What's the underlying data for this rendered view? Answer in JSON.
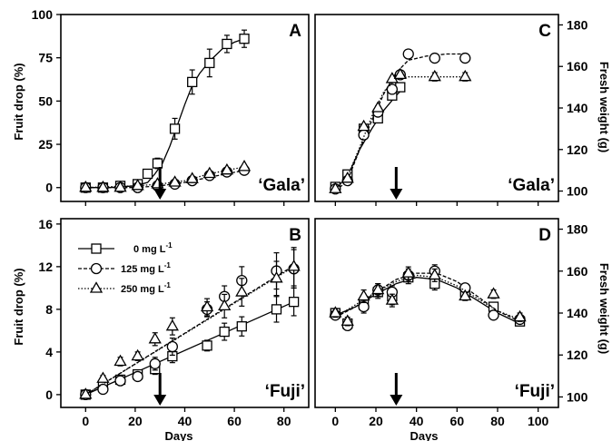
{
  "figure": {
    "xlabel": "Days",
    "ylabel_left_top": "Fruit drop (%)",
    "ylabel_left_bottom": "Fruit drop (%)",
    "ylabel_right_top": "Fresh weight (g)",
    "ylabel_right_bottom": "Fresh weight (g)",
    "legend": [
      {
        "label": "0 mg L",
        "superscript": "-1",
        "marker": "square",
        "dash": "solid"
      },
      {
        "label": "125 mg L",
        "superscript": "-1",
        "marker": "circle",
        "dash": "dashed"
      },
      {
        "label": "250 mg L",
        "superscript": "-1",
        "marker": "triangle",
        "dash": "dotted"
      }
    ]
  },
  "chart_data": [
    {
      "panel": "A",
      "cultivar": "‘Gala’",
      "type": "scatter",
      "xlabel": "",
      "ylabel": "Fruit drop (%)",
      "xlim": [
        -10,
        90
      ],
      "ylim": [
        -8,
        100
      ],
      "xticks": [
        0,
        20,
        40,
        60,
        80
      ],
      "yticks": [
        0,
        25,
        50,
        75,
        100
      ],
      "x_tick_labels_shown": false,
      "arrow_at": 30,
      "series": [
        {
          "name": "0 mg L-1",
          "marker": "square",
          "dash": "solid",
          "x": [
            0,
            7,
            14,
            21,
            25,
            29,
            36,
            43,
            50,
            57,
            64
          ],
          "y": [
            0,
            0,
            1,
            2,
            8,
            14,
            34,
            61,
            72,
            83,
            86
          ],
          "err": [
            1,
            1,
            1,
            1,
            2,
            3,
            6,
            7,
            8,
            5,
            5
          ],
          "fit": [
            [
              0,
              0
            ],
            [
              10,
              0
            ],
            [
              20,
              1
            ],
            [
              25,
              3
            ],
            [
              28,
              8
            ],
            [
              31,
              14
            ],
            [
              34,
              24
            ],
            [
              37,
              36
            ],
            [
              40,
              48
            ],
            [
              43,
              59
            ],
            [
              46,
              66
            ],
            [
              50,
              73
            ],
            [
              55,
              80
            ],
            [
              60,
              84
            ],
            [
              64,
              86
            ]
          ]
        },
        {
          "name": "125 mg L-1",
          "marker": "circle",
          "dash": "dashed",
          "x": [
            0,
            7,
            14,
            21,
            29,
            36,
            43,
            50,
            57,
            64
          ],
          "y": [
            0,
            0,
            0,
            0,
            1,
            2,
            4,
            7,
            9,
            10
          ],
          "err": [
            1,
            1,
            1,
            1,
            1,
            1,
            1,
            1,
            1,
            1
          ],
          "fit": [
            [
              0,
              0
            ],
            [
              20,
              0
            ],
            [
              30,
              1
            ],
            [
              40,
              3
            ],
            [
              50,
              6
            ],
            [
              57,
              8
            ],
            [
              64,
              10
            ]
          ]
        },
        {
          "name": "250 mg L-1",
          "marker": "triangle",
          "dash": "dotted",
          "x": [
            0,
            7,
            14,
            21,
            29,
            36,
            43,
            50,
            57,
            64
          ],
          "y": [
            0,
            0,
            0,
            1,
            2,
            3,
            5,
            8,
            10,
            12
          ],
          "err": [
            1,
            1,
            1,
            1,
            1,
            1,
            1,
            1,
            1,
            1
          ],
          "fit": [
            [
              0,
              0
            ],
            [
              20,
              1
            ],
            [
              30,
              2
            ],
            [
              40,
              4
            ],
            [
              50,
              8
            ],
            [
              57,
              10
            ],
            [
              64,
              12
            ]
          ]
        }
      ]
    },
    {
      "panel": "C",
      "cultivar": "‘Gala’",
      "type": "scatter",
      "xlabel": "",
      "ylabel": "Fresh weight (g)",
      "xlim": [
        -10,
        110
      ],
      "ylim": [
        95,
        185
      ],
      "xticks": [
        0,
        20,
        40,
        60,
        80,
        100
      ],
      "yticks": [
        100,
        120,
        140,
        160,
        180
      ],
      "x_tick_labels_shown": false,
      "arrow_at": 30,
      "series": [
        {
          "name": "0 mg L-1",
          "marker": "square",
          "dash": "solid",
          "x": [
            0,
            6,
            14,
            21,
            28,
            32
          ],
          "y": [
            102,
            108,
            130,
            135,
            146,
            150
          ],
          "err": [
            1,
            1,
            1,
            1,
            1,
            1
          ],
          "fit": [
            [
              0,
              101
            ],
            [
              6,
              107
            ],
            [
              12,
              120
            ],
            [
              18,
              130
            ],
            [
              24,
              139
            ],
            [
              30,
              146
            ],
            [
              32,
              148
            ]
          ]
        },
        {
          "name": "125 mg L-1",
          "marker": "circle",
          "dash": "dashed",
          "x": [
            0,
            6,
            14,
            21,
            28,
            32,
            36,
            49,
            64
          ],
          "y": [
            101,
            105,
            127,
            138,
            149,
            156,
            166,
            164,
            164
          ],
          "err": [
            1,
            1,
            2,
            1,
            2,
            2,
            2,
            2,
            2
          ],
          "fit": [
            [
              0,
              100
            ],
            [
              6,
              105
            ],
            [
              12,
              120
            ],
            [
              18,
              134
            ],
            [
              24,
              147
            ],
            [
              30,
              157
            ],
            [
              36,
              163
            ],
            [
              45,
              165
            ],
            [
              55,
              166
            ],
            [
              64,
              166
            ]
          ]
        },
        {
          "name": "250 mg L-1",
          "marker": "triangle",
          "dash": "dotted",
          "x": [
            0,
            6,
            14,
            21,
            28,
            32,
            49,
            64
          ],
          "y": [
            101,
            106,
            131,
            140,
            154,
            156,
            155,
            155
          ],
          "err": [
            1,
            1,
            1,
            1,
            1,
            1,
            2,
            2
          ],
          "fit": [
            [
              0,
              101
            ],
            [
              6,
              107
            ],
            [
              12,
              121
            ],
            [
              18,
              136
            ],
            [
              24,
              148
            ],
            [
              30,
              154
            ],
            [
              36,
              155
            ],
            [
              50,
              155
            ],
            [
              64,
              155
            ]
          ]
        }
      ]
    },
    {
      "panel": "B",
      "cultivar": "‘Fuji’",
      "type": "scatter",
      "xlabel": "Days",
      "ylabel": "Fruit drop (%)",
      "xlim": [
        -10,
        90
      ],
      "ylim": [
        -1.2,
        16.5
      ],
      "xticks": [
        0,
        20,
        40,
        60,
        80
      ],
      "yticks": [
        0,
        4,
        8,
        12,
        16
      ],
      "x_tick_labels_shown": true,
      "arrow_at": 30,
      "series": [
        {
          "name": "0 mg L-1",
          "marker": "square",
          "dash": "solid",
          "x": [
            0,
            7,
            14,
            21,
            28,
            35,
            49,
            56,
            63,
            77,
            84
          ],
          "y": [
            0,
            0.8,
            1.4,
            1.9,
            2.4,
            3.6,
            4.6,
            5.9,
            6.4,
            8.0,
            8.7
          ],
          "err": [
            0.2,
            0.3,
            0.3,
            0.4,
            0.5,
            0.6,
            0.5,
            0.8,
            0.9,
            1.2,
            1.3
          ],
          "fit": [
            [
              0,
              0
            ],
            [
              84,
              8.7
            ]
          ]
        },
        {
          "name": "125 mg L-1",
          "marker": "circle",
          "dash": "dashed",
          "x": [
            0,
            7,
            14,
            21,
            28,
            35,
            49,
            56,
            63,
            77,
            84
          ],
          "y": [
            0,
            0.5,
            1.3,
            1.7,
            2.9,
            4.5,
            8.0,
            9.2,
            10.7,
            11.6,
            11.8
          ],
          "err": [
            0.2,
            0.3,
            0.3,
            0.4,
            0.6,
            0.8,
            0.7,
            1.0,
            1.3,
            1.7,
            1.8
          ],
          "fit": [
            [
              0,
              0
            ],
            [
              84,
              12.1
            ]
          ]
        },
        {
          "name": "250 mg L-1",
          "marker": "triangle",
          "dash": "dotted",
          "x": [
            0,
            7,
            14,
            21,
            28,
            35,
            49,
            56,
            63,
            77,
            84
          ],
          "y": [
            0,
            1.5,
            3.1,
            3.6,
            5.2,
            6.4,
            8.2,
            8.3,
            9.6,
            10.9,
            12.0
          ],
          "err": [
            0.2,
            0.3,
            0.4,
            0.4,
            0.6,
            0.8,
            0.8,
            1.1,
            1.3,
            1.6,
            1.8
          ],
          "fit": [
            [
              0,
              0
            ],
            [
              84,
              12.0
            ]
          ]
        }
      ]
    },
    {
      "panel": "D",
      "cultivar": "‘Fuji’",
      "type": "scatter",
      "xlabel": "Days",
      "ylabel": "Fresh weight (g)",
      "xlim": [
        -10,
        110
      ],
      "ylim": [
        95,
        185
      ],
      "xticks": [
        0,
        20,
        40,
        60,
        80,
        100
      ],
      "yticks": [
        100,
        120,
        140,
        160,
        180
      ],
      "x_tick_labels_shown": true,
      "arrow_at": 30,
      "series": [
        {
          "name": "0 mg L-1",
          "marker": "square",
          "dash": "solid",
          "x": [
            0,
            6,
            14,
            21,
            28,
            36,
            49,
            64,
            78,
            91
          ],
          "y": [
            140,
            135,
            144,
            150,
            148,
            157,
            154,
            150,
            143,
            136
          ],
          "err": [
            2,
            2,
            3,
            3,
            4,
            3,
            3,
            2,
            2,
            2
          ],
          "fit": [
            [
              0,
              139
            ],
            [
              10,
              143
            ],
            [
              20,
              149
            ],
            [
              30,
              154
            ],
            [
              40,
              157
            ],
            [
              50,
              156
            ],
            [
              60,
              152
            ],
            [
              70,
              146
            ],
            [
              80,
              140
            ],
            [
              91,
              135
            ]
          ]
        },
        {
          "name": "125 mg L-1",
          "marker": "circle",
          "dash": "dashed",
          "x": [
            0,
            6,
            14,
            21,
            28,
            36,
            49,
            64,
            78,
            91
          ],
          "y": [
            139,
            134,
            143,
            151,
            150,
            158,
            160,
            152,
            139,
            137
          ],
          "err": [
            2,
            2,
            3,
            3,
            3,
            3,
            3,
            2,
            2,
            2
          ],
          "fit": [
            [
              0,
              138
            ],
            [
              10,
              143
            ],
            [
              20,
              150
            ],
            [
              30,
              156
            ],
            [
              40,
              159
            ],
            [
              50,
              159
            ],
            [
              60,
              155
            ],
            [
              70,
              148
            ],
            [
              80,
              141
            ],
            [
              91,
              136
            ]
          ]
        },
        {
          "name": "250 mg L-1",
          "marker": "triangle",
          "dash": "dotted",
          "x": [
            0,
            6,
            14,
            21,
            28,
            36,
            49,
            64,
            78,
            91
          ],
          "y": [
            140,
            136,
            148,
            151,
            146,
            159,
            158,
            148,
            149,
            138
          ],
          "err": [
            2,
            2,
            3,
            3,
            3,
            3,
            3,
            2,
            2,
            2
          ],
          "fit": [
            [
              0,
              138
            ],
            [
              10,
              144
            ],
            [
              20,
              150
            ],
            [
              30,
              155
            ],
            [
              40,
              158
            ],
            [
              50,
              157
            ],
            [
              60,
              153
            ],
            [
              70,
              147
            ],
            [
              80,
              141
            ],
            [
              91,
              137
            ]
          ]
        }
      ]
    }
  ]
}
